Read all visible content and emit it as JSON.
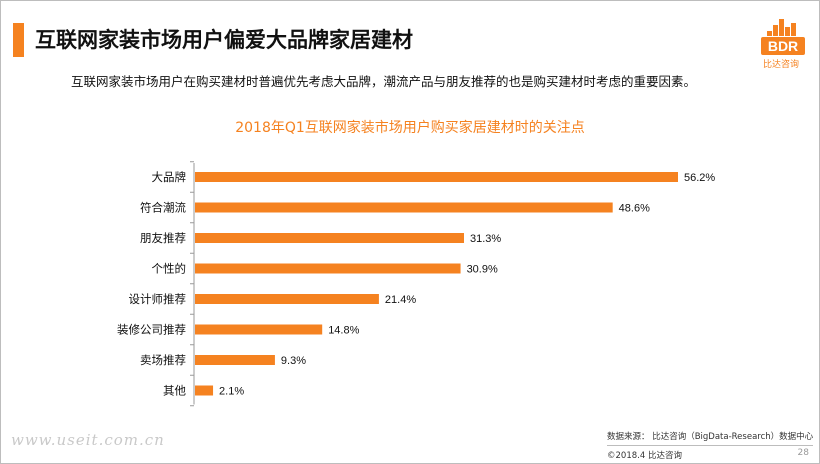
{
  "header": {
    "title": "互联网家装市场用户偏爱大品牌家居建材",
    "subtitle": "互联网家装市场用户在购买建材时普遍优先考虑大品牌，潮流产品与朋友推荐的也是购买建材时考虑的重要因素。"
  },
  "logo": {
    "text": "BDR",
    "caption": "比达咨询"
  },
  "colors": {
    "accent": "#f58220",
    "text": "#111111"
  },
  "chart_data": {
    "type": "bar",
    "orientation": "horizontal",
    "title": "2018年Q1互联网家装市场用户购买家居建材时的关注点",
    "categories": [
      "大品牌",
      "符合潮流",
      "朋友推荐",
      "个性的",
      "设计师推荐",
      "装修公司推荐",
      "卖场推荐",
      "其他"
    ],
    "values": [
      56.2,
      48.6,
      31.3,
      30.9,
      21.4,
      14.8,
      9.3,
      2.1
    ],
    "value_labels": [
      "56.2%",
      "48.6%",
      "31.3%",
      "30.9%",
      "21.4%",
      "14.8%",
      "9.3%",
      "2.1%"
    ],
    "xlim": [
      0,
      60
    ],
    "grid": false,
    "color": "#f58220"
  },
  "footer": {
    "source": "数据来源： 比达咨询（BigData-Research）数据中心",
    "copyright": "©2018.4   比达咨询",
    "page": "28"
  },
  "watermark": "www.useit.com.cn"
}
